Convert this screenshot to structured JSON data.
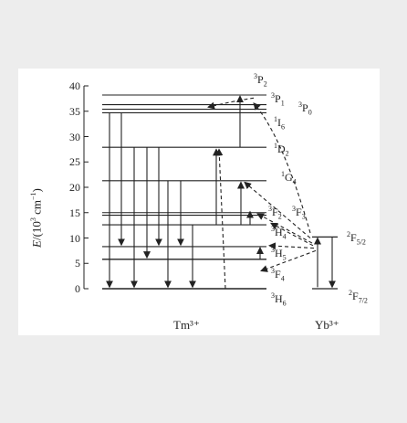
{
  "diagram": {
    "y_axis": {
      "label_italic": "E",
      "label_rest": "/(10",
      "label_sup": "3",
      "label_unit": " cm",
      "label_unit_sup": "−1",
      "label_close": ")",
      "ticks": [
        "0",
        "5",
        "10",
        "15",
        "20",
        "25",
        "30",
        "35",
        "40"
      ]
    },
    "ions": {
      "tm": "Tm³⁺",
      "yb": "Yb³⁺"
    },
    "tm_levels": [
      {
        "sup": "3",
        "main": "H",
        "sub": "6",
        "energy": 0
      },
      {
        "sup": "3",
        "main": "F",
        "sub": "4",
        "energy": 5.8
      },
      {
        "sup": "3",
        "main": "H",
        "sub": "5",
        "energy": 8.3
      },
      {
        "sup": "3",
        "main": "H",
        "sub": "4",
        "energy": 12.6
      },
      {
        "sup": "3",
        "main": "F",
        "sub": "3",
        "energy": 14.5
      },
      {
        "sup": "3",
        "main": "F",
        "sub": "2",
        "energy": 15.0
      },
      {
        "sup": "1",
        "main": "G",
        "sub": "4",
        "energy": 21.3
      },
      {
        "sup": "1",
        "main": "D",
        "sub": "2",
        "energy": 27.9
      },
      {
        "sup": "1",
        "main": "I",
        "sub": "6",
        "energy": 34.7
      },
      {
        "sup": "3",
        "main": "P",
        "sub": "0",
        "energy": 35.4
      },
      {
        "sup": "3",
        "main": "P",
        "sub": "1",
        "energy": 36.3
      },
      {
        "sup": "3",
        "main": "P",
        "sub": "2",
        "energy": 38.2
      }
    ],
    "yb_levels": [
      {
        "sup": "2",
        "main": "F",
        "sub": "7/2",
        "energy": 0
      },
      {
        "sup": "2",
        "main": "F",
        "sub": "5/2",
        "energy": 10.2
      }
    ],
    "colors": {
      "line": "#222222",
      "figure_bg": "#ffffff",
      "page_bg": "#ededed"
    }
  }
}
